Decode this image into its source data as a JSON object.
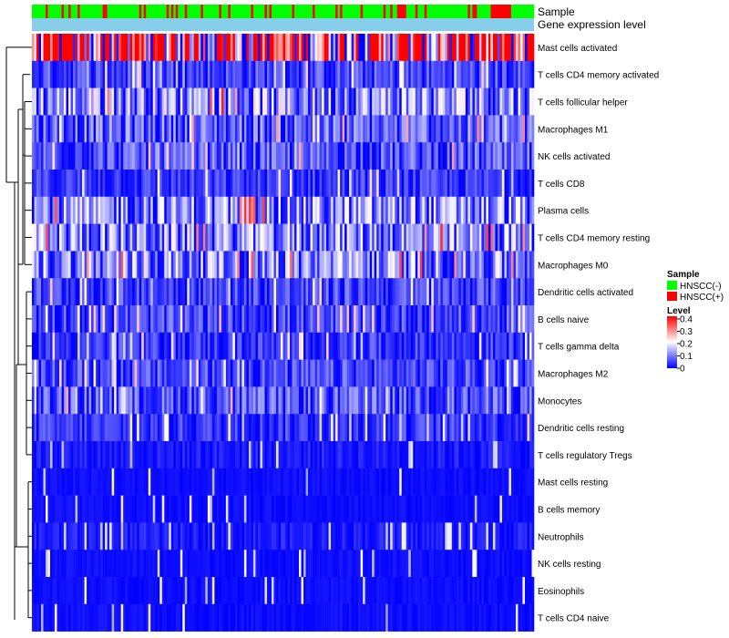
{
  "chart_data": {
    "type": "heatmap",
    "title": "",
    "annotations": [
      {
        "name": "Sample"
      },
      {
        "name": "Gene expression level"
      }
    ],
    "rows": [
      {
        "label": "Mast cells activated",
        "mean": 0.3
      },
      {
        "label": "T cells CD4 memory activated",
        "mean": 0.05
      },
      {
        "label": "T cells follicular helper",
        "mean": 0.11
      },
      {
        "label": "Macrophages M1",
        "mean": 0.07
      },
      {
        "label": "NK cells activated",
        "mean": 0.06
      },
      {
        "label": "T cells CD8",
        "mean": 0.04
      },
      {
        "label": "Plasma cells",
        "mean": 0.1
      },
      {
        "label": "T cells CD4 memory resting",
        "mean": 0.1
      },
      {
        "label": "Macrophages M0",
        "mean": 0.1
      },
      {
        "label": "Dendritic cells activated",
        "mean": 0.05
      },
      {
        "label": "B cells naive",
        "mean": 0.05
      },
      {
        "label": "T cells gamma delta",
        "mean": 0.04
      },
      {
        "label": "Macrophages M2",
        "mean": 0.05
      },
      {
        "label": "Monocytes",
        "mean": 0.06
      },
      {
        "label": "Dendritic cells resting",
        "mean": 0.04
      },
      {
        "label": "T cells regulatory  Tregs",
        "mean": 0.02
      },
      {
        "label": "Mast cells resting",
        "mean": 0.01
      },
      {
        "label": "B cells memory",
        "mean": 0.01
      },
      {
        "label": "Neutrophils",
        "mean": 0.02
      },
      {
        "label": "NK cells resting",
        "mean": 0.01
      },
      {
        "label": "Eosinophils",
        "mean": 0.005
      },
      {
        "label": "T cells CD4 naive",
        "mean": 0.01
      }
    ],
    "legend": {
      "sample_title": "Sample",
      "sample_items": [
        {
          "label": "HNSCC(-)",
          "color": "#00ff00"
        },
        {
          "label": "HNSCC(+)",
          "color": "#ff0000"
        }
      ],
      "level_title": "Level",
      "level_ticks": [
        "0.4",
        "0.3",
        "0.2",
        "0.1",
        "0"
      ],
      "level_range": [
        0,
        0.4
      ],
      "placement": "right"
    },
    "colors": {
      "low": "#0000ff",
      "mid": "#ffffff",
      "high": "#ff0000",
      "expr_bar": "#87ceeb",
      "negative": "#00ff00",
      "positive": "#ff0000"
    }
  }
}
